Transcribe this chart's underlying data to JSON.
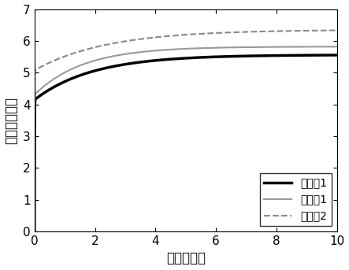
{
  "xlabel": "时间（秒）",
  "ylabel": "电阵（欧姆）",
  "xlim": [
    0,
    10
  ],
  "ylim": [
    0,
    7
  ],
  "xticks": [
    0,
    2,
    4,
    6,
    8,
    10
  ],
  "yticks": [
    0,
    1,
    2,
    3,
    4,
    5,
    6,
    7
  ],
  "series": [
    {
      "label": "实施例1",
      "color": "#000000",
      "linewidth": 2.5,
      "linestyle": "solid",
      "start_val": 4.18,
      "end_val": 5.56,
      "rise_speed": 0.52
    },
    {
      "label": "比较例1",
      "color": "#999999",
      "linewidth": 1.5,
      "linestyle": "solid",
      "start_val": 4.35,
      "end_val": 5.82,
      "rise_speed": 0.62
    },
    {
      "label": "比较例2",
      "color": "#888888",
      "linewidth": 1.5,
      "linestyle": "dashed",
      "start_val": 5.1,
      "end_val": 6.35,
      "rise_speed": 0.42
    }
  ],
  "background_color": "#ffffff",
  "font_size": 12,
  "tick_font_size": 11,
  "legend_fontsize": 10
}
